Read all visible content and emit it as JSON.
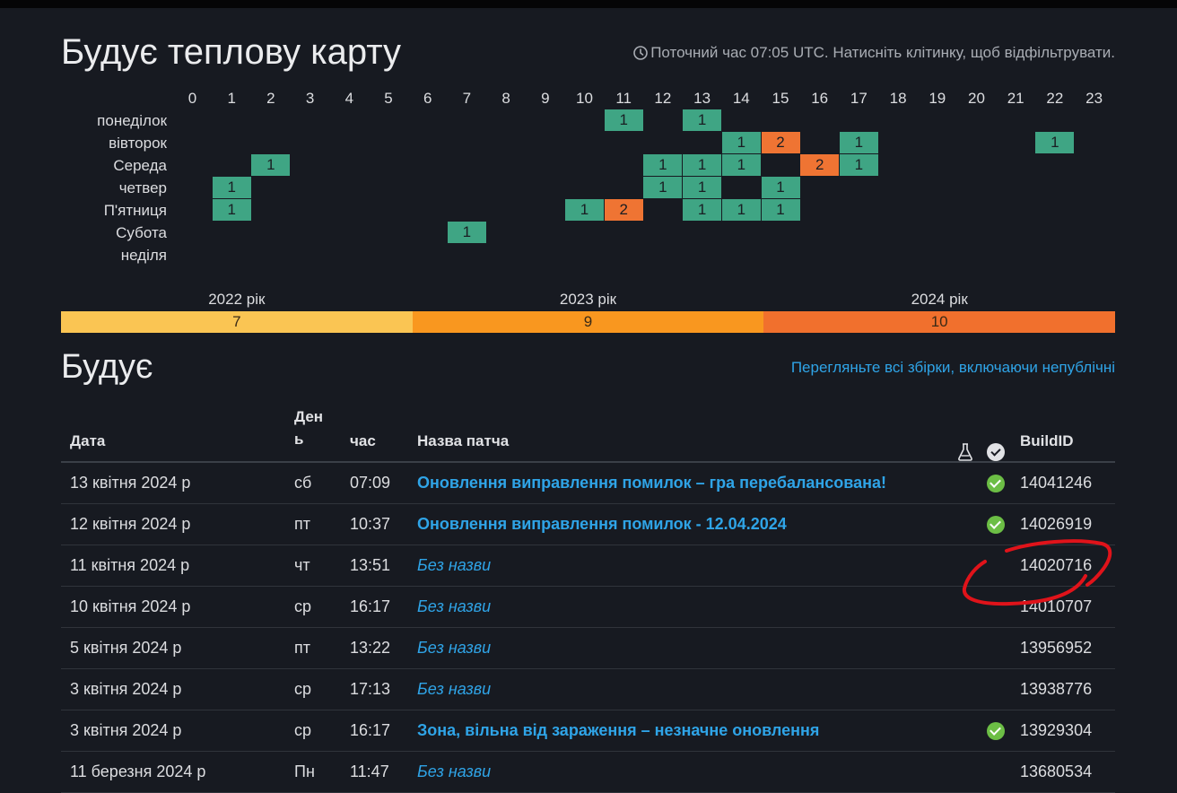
{
  "heatmap": {
    "title": "Будує теплову карту",
    "hint": "Поточний час 07:05 UTC. Натисніть клітинку, щоб відфільтрувати.",
    "hours": [
      "0",
      "1",
      "2",
      "3",
      "4",
      "5",
      "6",
      "7",
      "8",
      "9",
      "10",
      "11",
      "12",
      "13",
      "14",
      "15",
      "16",
      "17",
      "18",
      "19",
      "20",
      "21",
      "22",
      "23"
    ],
    "days": [
      "понеділок",
      "вівторок",
      "Середа",
      "четвер",
      "П'ятниця",
      "Субота",
      "неділя"
    ],
    "cells": [
      {
        "day": 0,
        "hour": 11,
        "value": "1",
        "level": "low"
      },
      {
        "day": 0,
        "hour": 13,
        "value": "1",
        "level": "low"
      },
      {
        "day": 1,
        "hour": 14,
        "value": "1",
        "level": "low"
      },
      {
        "day": 1,
        "hour": 15,
        "value": "2",
        "level": "high"
      },
      {
        "day": 1,
        "hour": 17,
        "value": "1",
        "level": "low"
      },
      {
        "day": 1,
        "hour": 22,
        "value": "1",
        "level": "low"
      },
      {
        "day": 2,
        "hour": 2,
        "value": "1",
        "level": "low"
      },
      {
        "day": 2,
        "hour": 12,
        "value": "1",
        "level": "low"
      },
      {
        "day": 2,
        "hour": 13,
        "value": "1",
        "level": "low"
      },
      {
        "day": 2,
        "hour": 14,
        "value": "1",
        "level": "low"
      },
      {
        "day": 2,
        "hour": 16,
        "value": "2",
        "level": "high"
      },
      {
        "day": 2,
        "hour": 17,
        "value": "1",
        "level": "low"
      },
      {
        "day": 3,
        "hour": 1,
        "value": "1",
        "level": "low"
      },
      {
        "day": 3,
        "hour": 12,
        "value": "1",
        "level": "low"
      },
      {
        "day": 3,
        "hour": 13,
        "value": "1",
        "level": "low"
      },
      {
        "day": 3,
        "hour": 15,
        "value": "1",
        "level": "low"
      },
      {
        "day": 4,
        "hour": 1,
        "value": "1",
        "level": "low"
      },
      {
        "day": 4,
        "hour": 10,
        "value": "1",
        "level": "low"
      },
      {
        "day": 4,
        "hour": 11,
        "value": "2",
        "level": "high"
      },
      {
        "day": 4,
        "hour": 13,
        "value": "1",
        "level": "low"
      },
      {
        "day": 4,
        "hour": 14,
        "value": "1",
        "level": "low"
      },
      {
        "day": 4,
        "hour": 15,
        "value": "1",
        "level": "low"
      },
      {
        "day": 5,
        "hour": 7,
        "value": "1",
        "level": "low"
      }
    ],
    "colors": {
      "low": "#3fa584",
      "high": "#ef7433"
    }
  },
  "years": [
    {
      "label": "2022 рік",
      "count": "7",
      "color": "#fac553"
    },
    {
      "label": "2023 рік",
      "count": "9",
      "color": "#f9971f"
    },
    {
      "label": "2024 рік",
      "count": "10",
      "color": "#f1702d"
    }
  ],
  "builds": {
    "title": "Будує",
    "all_link": "Перегляньте всі збірки, включаючи непублічні",
    "columns": {
      "date": "Дата",
      "day": "День",
      "time": "час",
      "patch": "Назва патча",
      "build_id": "BuildID"
    },
    "rows": [
      {
        "date": "13 квітня 2024 р",
        "day": "сб",
        "time": "07:09",
        "patch": "Оновлення виправлення помилок – гра перебалансована!",
        "titled": true,
        "verified": true,
        "build_id": "14041246"
      },
      {
        "date": "12 квітня 2024 р",
        "day": "пт",
        "time": "10:37",
        "patch": "Оновлення виправлення помилок - 12.04.2024",
        "titled": true,
        "verified": true,
        "build_id": "14026919"
      },
      {
        "date": "11 квітня 2024 р",
        "day": "чт",
        "time": "13:51",
        "patch": "Без назви",
        "titled": false,
        "verified": false,
        "build_id": "14020716"
      },
      {
        "date": "10 квітня 2024 р",
        "day": "ср",
        "time": "16:17",
        "patch": "Без назви",
        "titled": false,
        "verified": false,
        "build_id": "14010707"
      },
      {
        "date": "5 квітня 2024 р",
        "day": "пт",
        "time": "13:22",
        "patch": "Без назви",
        "titled": false,
        "verified": false,
        "build_id": "13956952"
      },
      {
        "date": "3 квітня 2024 р",
        "day": "ср",
        "time": "17:13",
        "patch": "Без назви",
        "titled": false,
        "verified": false,
        "build_id": "13938776"
      },
      {
        "date": "3 квітня 2024 р",
        "day": "ср",
        "time": "16:17",
        "patch": "Зона, вільна від зараження – незначне оновлення",
        "titled": true,
        "verified": true,
        "build_id": "13929304"
      },
      {
        "date": "11 березня 2024 р",
        "day": "Пн",
        "time": "11:47",
        "patch": "Без назви",
        "titled": false,
        "verified": false,
        "build_id": "13680534"
      }
    ]
  }
}
